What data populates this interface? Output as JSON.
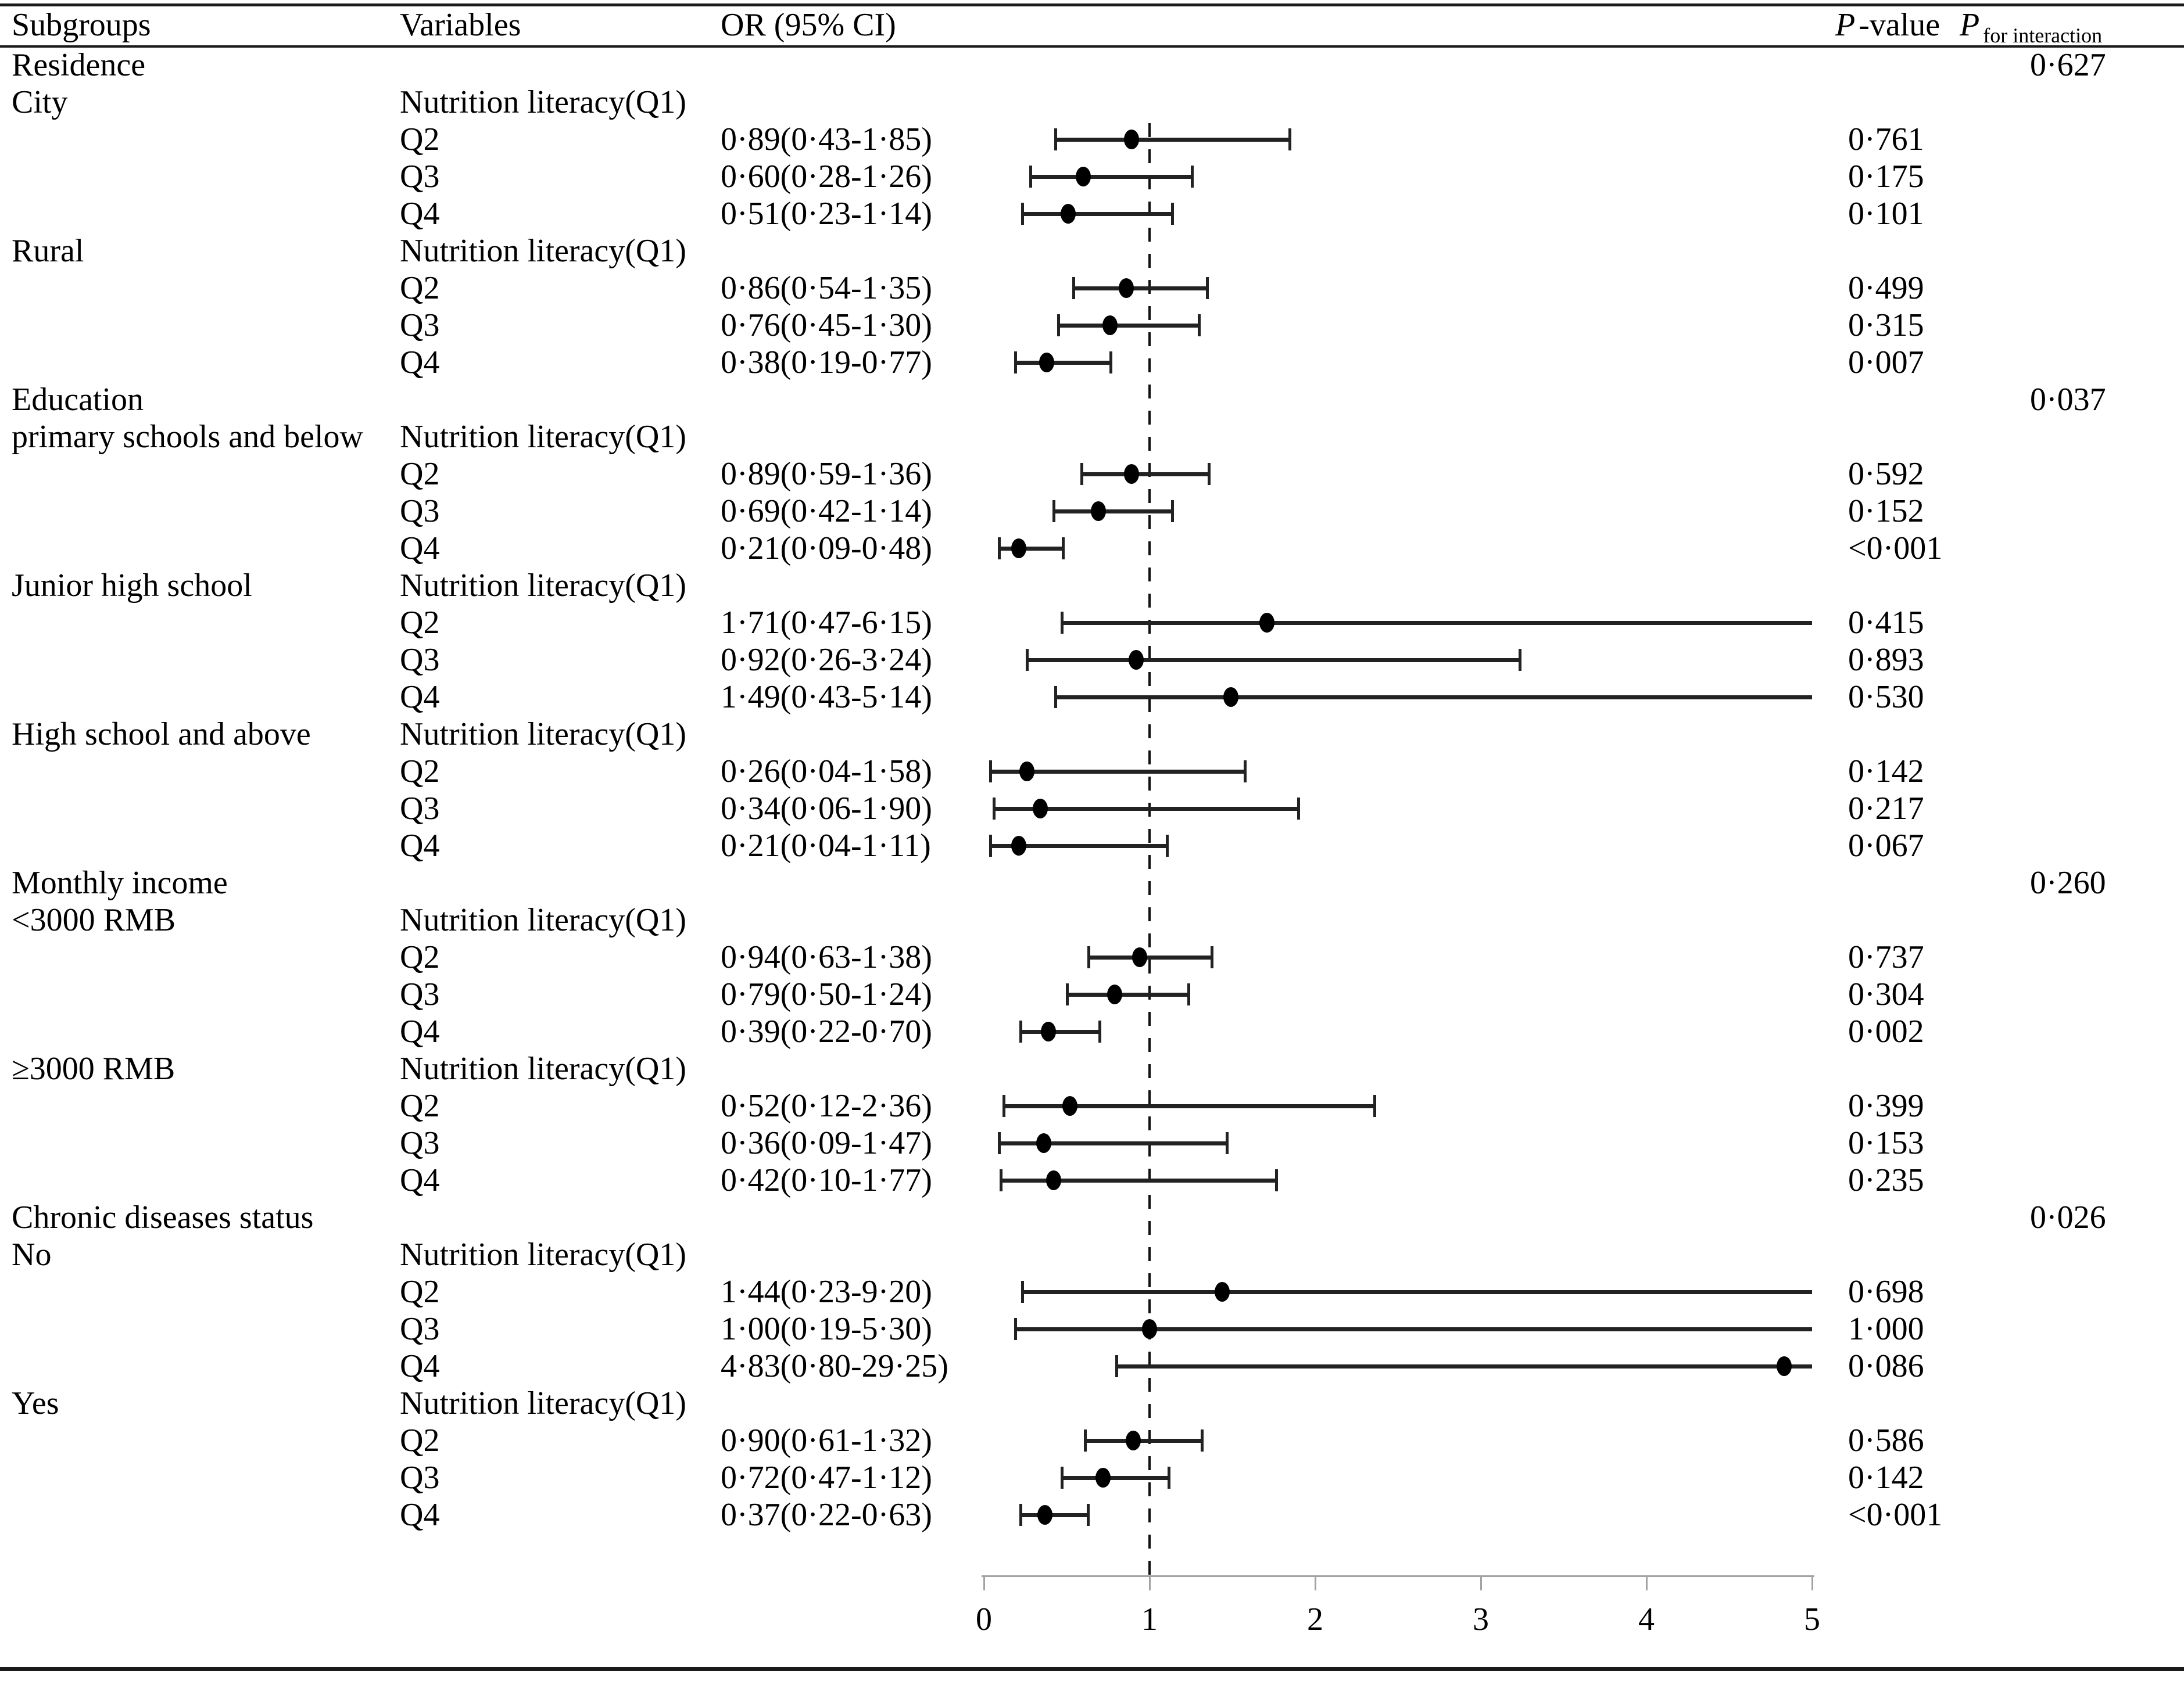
{
  "header": {
    "subgroups": "Subgroups",
    "variables": "Variables",
    "or_ci": "OR (95% CI)",
    "p_value_italic": "P",
    "p_value_rest": "-value",
    "p_interaction_italic": "P",
    "p_interaction_sub": "for interaction"
  },
  "colors": {
    "text": "#000000",
    "ci_bar": "#222222",
    "dot": "#000000",
    "axis": "#a3a3a3",
    "rule": "#1a1a1a",
    "reference_line": "#111111"
  },
  "chart_data": {
    "type": "forest",
    "x_axis": {
      "min": 0,
      "max": 5,
      "ticks": [
        0,
        1,
        2,
        3,
        4,
        5
      ],
      "reference_line": 1,
      "grid": false
    },
    "decimal_separator": "·",
    "sections": [
      {
        "label": "Residence",
        "p_interaction": "0·627",
        "subgroups": [
          {
            "label": "City",
            "variable": "Nutrition literacy(Q1)",
            "rows": [
              {
                "level": "Q2",
                "or_ci": "0·89(0·43-1·85)",
                "or": 0.89,
                "low": 0.43,
                "high": 1.85,
                "p": "0·761"
              },
              {
                "level": "Q3",
                "or_ci": "0·60(0·28-1·26)",
                "or": 0.6,
                "low": 0.28,
                "high": 1.26,
                "p": "0·175"
              },
              {
                "level": "Q4",
                "or_ci": "0·51(0·23-1·14)",
                "or": 0.51,
                "low": 0.23,
                "high": 1.14,
                "p": "0·101"
              }
            ]
          },
          {
            "label": "Rural",
            "variable": "Nutrition literacy(Q1)",
            "rows": [
              {
                "level": "Q2",
                "or_ci": "0·86(0·54-1·35)",
                "or": 0.86,
                "low": 0.54,
                "high": 1.35,
                "p": "0·499"
              },
              {
                "level": "Q3",
                "or_ci": "0·76(0·45-1·30)",
                "or": 0.76,
                "low": 0.45,
                "high": 1.3,
                "p": "0·315"
              },
              {
                "level": "Q4",
                "or_ci": "0·38(0·19-0·77)",
                "or": 0.38,
                "low": 0.19,
                "high": 0.77,
                "p": "0·007"
              }
            ]
          }
        ]
      },
      {
        "label": "Education",
        "p_interaction": "0·037",
        "subgroups": [
          {
            "label": "primary schools and below",
            "variable": "Nutrition literacy(Q1)",
            "rows": [
              {
                "level": "Q2",
                "or_ci": "0·89(0·59-1·36)",
                "or": 0.89,
                "low": 0.59,
                "high": 1.36,
                "p": "0·592"
              },
              {
                "level": "Q3",
                "or_ci": "0·69(0·42-1·14)",
                "or": 0.69,
                "low": 0.42,
                "high": 1.14,
                "p": "0·152"
              },
              {
                "level": "Q4",
                "or_ci": "0·21(0·09-0·48)",
                "or": 0.21,
                "low": 0.09,
                "high": 0.48,
                "p": "<0·001"
              }
            ]
          },
          {
            "label": "Junior high school",
            "variable": "Nutrition literacy(Q1)",
            "rows": [
              {
                "level": "Q2",
                "or_ci": "1·71(0·47-6·15)",
                "or": 1.71,
                "low": 0.47,
                "high": 6.15,
                "p": "0·415"
              },
              {
                "level": "Q3",
                "or_ci": "0·92(0·26-3·24)",
                "or": 0.92,
                "low": 0.26,
                "high": 3.24,
                "p": "0·893"
              },
              {
                "level": "Q4",
                "or_ci": "1·49(0·43-5·14)",
                "or": 1.49,
                "low": 0.43,
                "high": 5.14,
                "p": "0·530"
              }
            ]
          },
          {
            "label": "High school and above",
            "variable": "Nutrition literacy(Q1)",
            "rows": [
              {
                "level": "Q2",
                "or_ci": "0·26(0·04-1·58)",
                "or": 0.26,
                "low": 0.04,
                "high": 1.58,
                "p": "0·142"
              },
              {
                "level": "Q3",
                "or_ci": "0·34(0·06-1·90)",
                "or": 0.34,
                "low": 0.06,
                "high": 1.9,
                "p": "0·217"
              },
              {
                "level": "Q4",
                "or_ci": "0·21(0·04-1·11)",
                "or": 0.21,
                "low": 0.04,
                "high": 1.11,
                "p": "0·067"
              }
            ]
          }
        ]
      },
      {
        "label": "Monthly income",
        "p_interaction": "0·260",
        "subgroups": [
          {
            "label": "<3000 RMB",
            "variable": "Nutrition literacy(Q1)",
            "rows": [
              {
                "level": "Q2",
                "or_ci": "0·94(0·63-1·38)",
                "or": 0.94,
                "low": 0.63,
                "high": 1.38,
                "p": "0·737"
              },
              {
                "level": "Q3",
                "or_ci": "0·79(0·50-1·24)",
                "or": 0.79,
                "low": 0.5,
                "high": 1.24,
                "p": "0·304"
              },
              {
                "level": "Q4",
                "or_ci": "0·39(0·22-0·70)",
                "or": 0.39,
                "low": 0.22,
                "high": 0.7,
                "p": "0·002"
              }
            ]
          },
          {
            "label": "≥3000 RMB",
            "variable": "Nutrition literacy(Q1)",
            "rows": [
              {
                "level": "Q2",
                "or_ci": "0·52(0·12-2·36)",
                "or": 0.52,
                "low": 0.12,
                "high": 2.36,
                "p": "0·399"
              },
              {
                "level": "Q3",
                "or_ci": "0·36(0·09-1·47)",
                "or": 0.36,
                "low": 0.09,
                "high": 1.47,
                "p": "0·153"
              },
              {
                "level": "Q4",
                "or_ci": "0·42(0·10-1·77)",
                "or": 0.42,
                "low": 0.1,
                "high": 1.77,
                "p": "0·235"
              }
            ]
          }
        ]
      },
      {
        "label": "Chronic diseases status",
        "p_interaction": "0·026",
        "subgroups": [
          {
            "label": "No",
            "variable": "Nutrition literacy(Q1)",
            "rows": [
              {
                "level": "Q2",
                "or_ci": "1·44(0·23-9·20)",
                "or": 1.44,
                "low": 0.23,
                "high": 9.2,
                "p": "0·698"
              },
              {
                "level": "Q3",
                "or_ci": "1·00(0·19-5·30)",
                "or": 1.0,
                "low": 0.19,
                "high": 5.3,
                "p": "1·000"
              },
              {
                "level": "Q4",
                "or_ci": "4·83(0·80-29·25)",
                "or": 4.83,
                "low": 0.8,
                "high": 29.25,
                "p": "0·086"
              }
            ]
          },
          {
            "label": "Yes",
            "variable": "Nutrition literacy(Q1)",
            "rows": [
              {
                "level": "Q2",
                "or_ci": "0·90(0·61-1·32)",
                "or": 0.9,
                "low": 0.61,
                "high": 1.32,
                "p": "0·586"
              },
              {
                "level": "Q3",
                "or_ci": "0·72(0·47-1·12)",
                "or": 0.72,
                "low": 0.47,
                "high": 1.12,
                "p": "0·142"
              },
              {
                "level": "Q4",
                "or_ci": "0·37(0·22-0·63)",
                "or": 0.37,
                "low": 0.22,
                "high": 0.63,
                "p": "<0·001"
              }
            ]
          }
        ]
      }
    ]
  }
}
